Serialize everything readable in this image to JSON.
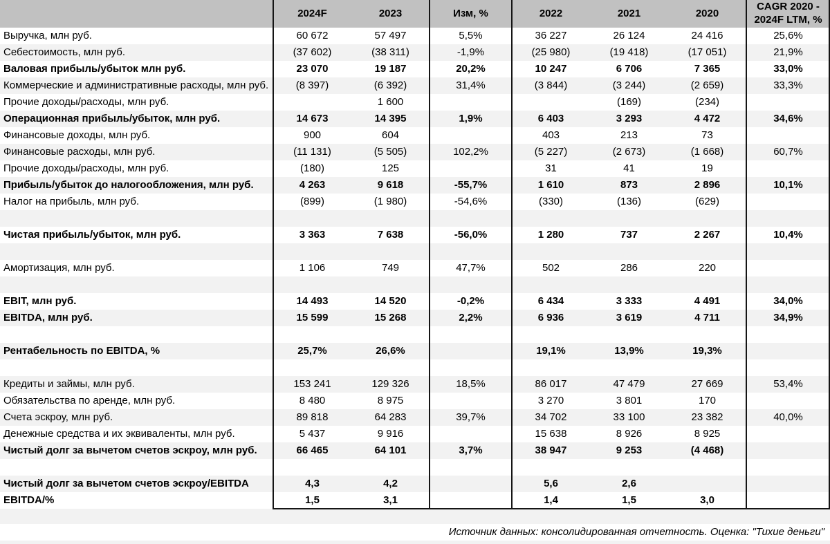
{
  "colors": {
    "header_bg": "#c1c1c1",
    "stripe_bg": "#f2f2f2",
    "border": "#151515",
    "text": "#000000"
  },
  "chart_data": {
    "type": "table",
    "columns": [
      "",
      "2024F",
      "2023",
      "Изм, %",
      "2022",
      "2021",
      "2020",
      "CAGR 2020 - 2024F LTM, %"
    ],
    "rows": [
      {
        "label": "Выручка, млн руб.",
        "bold": false,
        "values": [
          "60 672",
          "57 497",
          "5,5%",
          "36 227",
          "26 124",
          "24 416",
          "25,6%"
        ]
      },
      {
        "label": "Себестоимость, млн руб.",
        "bold": false,
        "values": [
          "(37 602)",
          "(38 311)",
          "-1,9%",
          "(25 980)",
          "(19 418)",
          "(17 051)",
          "21,9%"
        ]
      },
      {
        "label": "Валовая прибыль/убыток млн руб.",
        "bold": true,
        "values": [
          "23 070",
          "19 187",
          "20,2%",
          "10 247",
          "6 706",
          "7 365",
          "33,0%"
        ]
      },
      {
        "label": "Коммерческие и административные расходы, млн руб.",
        "bold": false,
        "values": [
          "(8 397)",
          "(6 392)",
          "31,4%",
          "(3 844)",
          "(3 244)",
          "(2 659)",
          "33,3%"
        ]
      },
      {
        "label": "Прочие доходы/расходы, млн руб.",
        "bold": false,
        "values": [
          "",
          "1 600",
          "",
          "",
          "(169)",
          "(234)",
          ""
        ]
      },
      {
        "label": "Операционная прибыль/убыток, млн руб.",
        "bold": true,
        "values": [
          "14 673",
          "14 395",
          "1,9%",
          "6 403",
          "3 293",
          "4 472",
          "34,6%"
        ]
      },
      {
        "label": "Финансовые доходы, млн руб.",
        "bold": false,
        "values": [
          "900",
          "604",
          "",
          "403",
          "213",
          "73",
          ""
        ]
      },
      {
        "label": "Финансовые расходы, млн руб.",
        "bold": false,
        "values": [
          "(11 131)",
          "(5 505)",
          "102,2%",
          "(5 227)",
          "(2 673)",
          "(1 668)",
          "60,7%"
        ]
      },
      {
        "label": "Прочие доходы/расходы, млн руб.",
        "bold": false,
        "values": [
          "(180)",
          "125",
          "",
          "31",
          "41",
          "19",
          ""
        ]
      },
      {
        "label": "Прибыль/убыток до налогообложения, млн руб.",
        "bold": true,
        "values": [
          "4 263",
          "9 618",
          "-55,7%",
          "1 610",
          "873",
          "2 896",
          "10,1%"
        ]
      },
      {
        "label": "Налог на прибыль, млн руб.",
        "bold": false,
        "values": [
          "(899)",
          "(1 980)",
          "-54,6%",
          "(330)",
          "(136)",
          "(629)",
          ""
        ]
      },
      {
        "label": "",
        "bold": false,
        "values": [
          "",
          "",
          "",
          "",
          "",
          "",
          ""
        ]
      },
      {
        "label": "Чистая прибыль/убыток, млн руб.",
        "bold": true,
        "values": [
          "3 363",
          "7 638",
          "-56,0%",
          "1 280",
          "737",
          "2 267",
          "10,4%"
        ]
      },
      {
        "label": "",
        "bold": false,
        "values": [
          "",
          "",
          "",
          "",
          "",
          "",
          ""
        ]
      },
      {
        "label": "Амортизация, млн руб.",
        "bold": false,
        "values": [
          "1 106",
          "749",
          "47,7%",
          "502",
          "286",
          "220",
          ""
        ]
      },
      {
        "label": "",
        "bold": false,
        "values": [
          "",
          "",
          "",
          "",
          "",
          "",
          ""
        ]
      },
      {
        "label": "EBIT, млн руб.",
        "bold": true,
        "values": [
          "14 493",
          "14 520",
          "-0,2%",
          "6 434",
          "3 333",
          "4 491",
          "34,0%"
        ]
      },
      {
        "label": "EBITDA, млн руб.",
        "bold": true,
        "values": [
          "15 599",
          "15 268",
          "2,2%",
          "6 936",
          "3 619",
          "4 711",
          "34,9%"
        ]
      },
      {
        "label": "",
        "bold": false,
        "values": [
          "",
          "",
          "",
          "",
          "",
          "",
          ""
        ]
      },
      {
        "label": "Рентабельность по EBITDA, %",
        "bold": true,
        "values": [
          "25,7%",
          "26,6%",
          "",
          "19,1%",
          "13,9%",
          "19,3%",
          ""
        ]
      },
      {
        "label": "",
        "bold": false,
        "values": [
          "",
          "",
          "",
          "",
          "",
          "",
          ""
        ]
      },
      {
        "label": "Кредиты и займы, млн руб.",
        "bold": false,
        "values": [
          "153 241",
          "129 326",
          "18,5%",
          "86 017",
          "47 479",
          "27 669",
          "53,4%"
        ]
      },
      {
        "label": "Обязательства по аренде, млн руб.",
        "bold": false,
        "values": [
          "8 480",
          "8 975",
          "",
          "3 270",
          "3 801",
          "170",
          ""
        ]
      },
      {
        "label": "Счета эскроу, млн руб.",
        "bold": false,
        "values": [
          "89 818",
          "64 283",
          "39,7%",
          "34 702",
          "33 100",
          "23 382",
          "40,0%"
        ]
      },
      {
        "label": "Денежные средства и их эквиваленты, млн руб.",
        "bold": false,
        "values": [
          "5 437",
          "9 916",
          "",
          "15 638",
          "8 926",
          "8 925",
          ""
        ]
      },
      {
        "label": "Чистый долг за вычетом счетов эскроу, млн руб.",
        "bold": true,
        "values": [
          "66 465",
          "64 101",
          "3,7%",
          "38 947",
          "9 253",
          "(4 468)",
          ""
        ]
      },
      {
        "label": "",
        "bold": false,
        "values": [
          "",
          "",
          "",
          "",
          "",
          "",
          ""
        ]
      },
      {
        "label": "Чистый долг за вычетом счетов эскроу/EBITDA",
        "bold": true,
        "values": [
          "4,3",
          "4,2",
          "",
          "5,6",
          "2,6",
          "",
          ""
        ]
      },
      {
        "label": "EBITDA/%",
        "bold": true,
        "values": [
          "1,5",
          "3,1",
          "",
          "1,4",
          "1,5",
          "3,0",
          ""
        ]
      }
    ],
    "source_note": "Источник данных: консолидированная отчетность. Оценка: \"Тихие деньги\""
  }
}
